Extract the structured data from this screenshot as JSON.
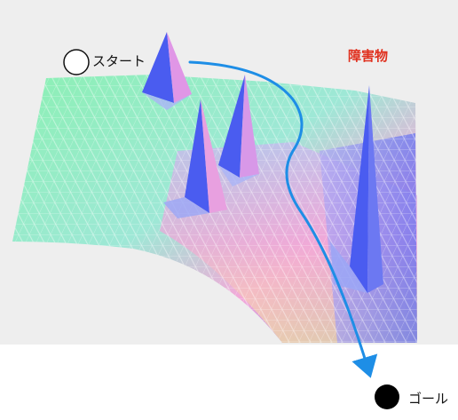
{
  "labels": {
    "start": "スタート",
    "obstacle": "障害物",
    "goal": "ゴール"
  },
  "colors": {
    "background": "#eeeeee",
    "surface_low": "#8cf0b4",
    "surface_mid": "#f4a8d8",
    "surface_high": "#6a6cf0",
    "peak": "#4a5cf0",
    "path_arrow": "#1e8ee6",
    "obstacle_label": "#e0301e",
    "start_marker": "#ffffff",
    "goal_marker": "#000000"
  },
  "markers": {
    "start": "hollow-circle",
    "goal": "filled-circle"
  }
}
